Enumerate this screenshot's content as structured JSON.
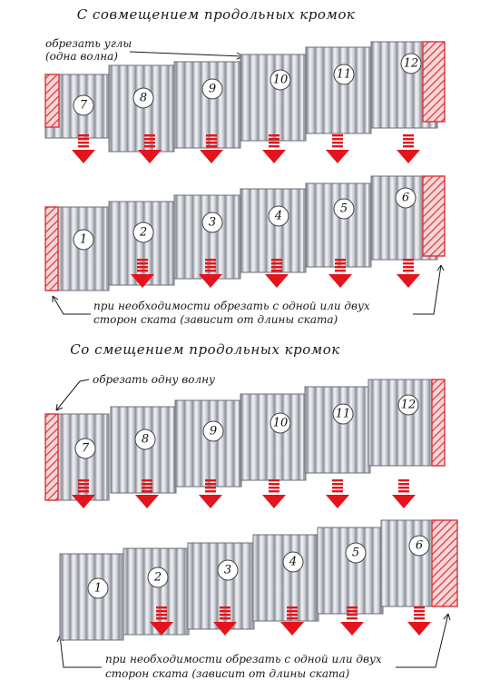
{
  "sections": [
    {
      "title": "С совмещением продольных кромок",
      "note_top": [
        "обрезать углы",
        "(одна волна)"
      ],
      "note_bottom": [
        "при необходимости обрезать с одной или двух",
        "сторон ската (зависит от длины ската)"
      ],
      "rows": [
        {
          "sheets": [
            "7",
            "8",
            "9",
            "10",
            "11",
            "12"
          ]
        },
        {
          "sheets": [
            "1",
            "2",
            "3",
            "4",
            "5",
            "6"
          ]
        }
      ]
    },
    {
      "title": "Со смещением продольных кромок",
      "note_top": [
        "обрезать одну волну"
      ],
      "note_bottom": [
        "при необходимости обрезать с одной или двух",
        "сторон ската (зависит от длины ската)"
      ],
      "rows": [
        {
          "sheets": [
            "7",
            "8",
            "9",
            "10",
            "11",
            "12"
          ]
        },
        {
          "sheets": [
            "1",
            "2",
            "3",
            "4",
            "5",
            "6"
          ]
        }
      ]
    }
  ],
  "colors": {
    "arrow": "#e3141b",
    "hatch": "#d9343a",
    "sheet_light": "#eef0f3",
    "sheet_dark": "#8d9199",
    "text": "#1a1a1a"
  },
  "icons": {
    "flow_arrow": "red-down-arrow-icon",
    "cut_zone": "hatched-cut-zone-icon"
  }
}
